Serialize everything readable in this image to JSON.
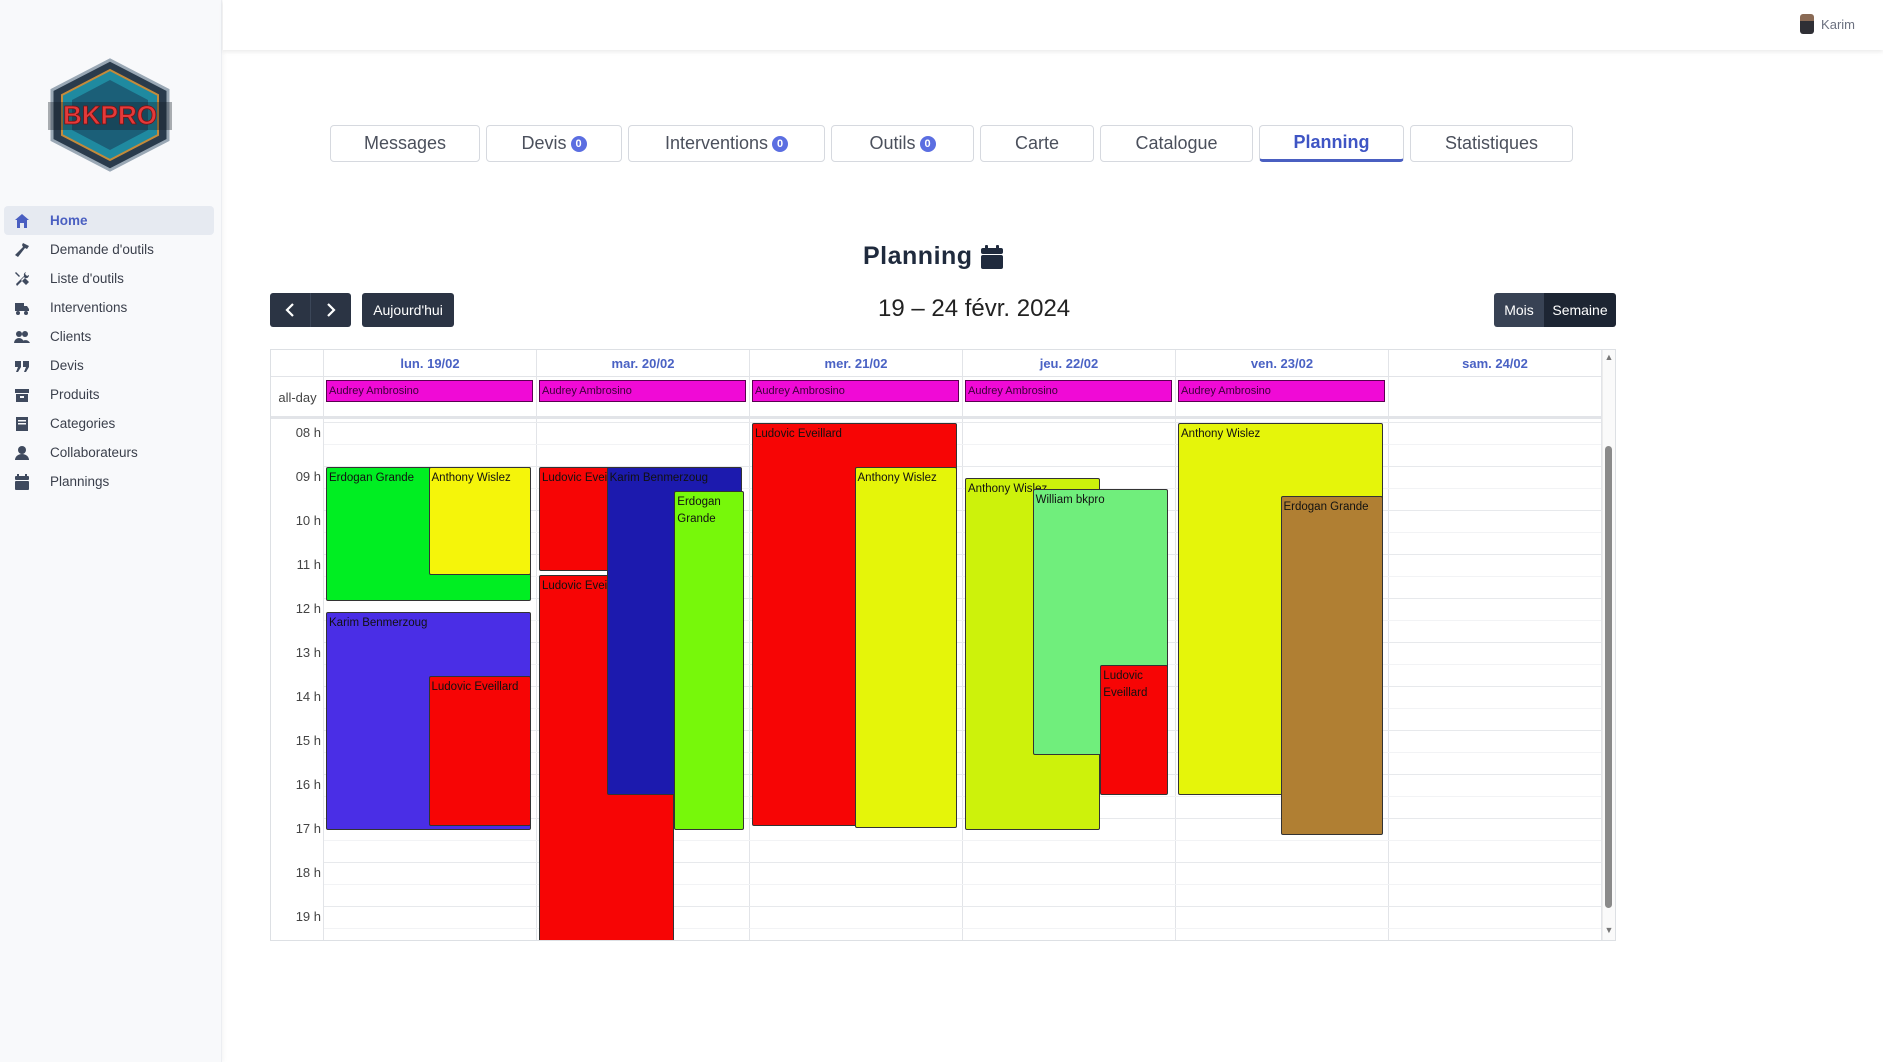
{
  "user": {
    "name": "Karim"
  },
  "brand": {
    "logo_text": "BKPRO"
  },
  "sidebar": {
    "items": [
      {
        "label": "Home",
        "icon": "home-icon",
        "active": true
      },
      {
        "label": "Demande d'outils",
        "icon": "hammer-icon",
        "active": false
      },
      {
        "label": "Liste d'outils",
        "icon": "tools-icon",
        "active": false
      },
      {
        "label": "Interventions",
        "icon": "truck-icon",
        "active": false
      },
      {
        "label": "Clients",
        "icon": "users-icon",
        "active": false
      },
      {
        "label": "Devis",
        "icon": "quote-icon",
        "active": false
      },
      {
        "label": "Produits",
        "icon": "box-icon",
        "active": false
      },
      {
        "label": "Categories",
        "icon": "book-icon",
        "active": false
      },
      {
        "label": "Collaborateurs",
        "icon": "user-icon",
        "active": false
      },
      {
        "label": "Plannings",
        "icon": "calendar-icon",
        "active": false
      }
    ]
  },
  "tabs": [
    {
      "label": "Messages",
      "badge": null
    },
    {
      "label": "Devis",
      "badge": "0"
    },
    {
      "label": "Interventions",
      "badge": "0"
    },
    {
      "label": "Outils",
      "badge": "0"
    },
    {
      "label": "Carte",
      "badge": null
    },
    {
      "label": "Catalogue",
      "badge": null
    },
    {
      "label": "Planning",
      "badge": null,
      "active": true
    },
    {
      "label": "Statistiques",
      "badge": null
    }
  ],
  "page": {
    "title": "Planning"
  },
  "toolbar": {
    "prev": "‹",
    "next": "›",
    "today": "Aujourd'hui",
    "range": "19 – 24 févr. 2024",
    "month": "Mois",
    "week": "Semaine"
  },
  "calendar": {
    "allday_label": "all-day",
    "days": [
      "lun. 19/02",
      "mar. 20/02",
      "mer. 21/02",
      "jeu. 22/02",
      "ven. 23/02",
      "sam. 24/02"
    ],
    "hours": [
      "08 h",
      "09 h",
      "10 h",
      "11 h",
      "12 h",
      "13 h",
      "14 h",
      "15 h",
      "16 h",
      "17 h",
      "18 h",
      "19 h"
    ],
    "allday_events": [
      {
        "day": 0,
        "title": "Audrey Ambrosino"
      },
      {
        "day": 1,
        "title": "Audrey Ambrosino"
      },
      {
        "day": 2,
        "title": "Audrey Ambrosino"
      },
      {
        "day": 3,
        "title": "Audrey Ambrosino"
      },
      {
        "day": 4,
        "title": "Audrey Ambrosino"
      }
    ],
    "events": [
      {
        "title": "Erdogan Grande",
        "day": 0,
        "start": 9.0,
        "end": 12.1,
        "color": "#00ee22"
      },
      {
        "title": "Anthony Wislez",
        "day": 0,
        "start": 9.0,
        "end": 11.5,
        "color": "#f5f50a"
      },
      {
        "title": "Karim Benmerzoug",
        "day": 0,
        "start": 12.3,
        "end": 17.3,
        "color": "#4a2ee6"
      },
      {
        "title": "Ludovic Eveillard",
        "day": 0,
        "start": 13.75,
        "end": 17.2,
        "color": "#f70505"
      },
      {
        "title": "Ludovic Eveillard",
        "day": 1,
        "start": 9.0,
        "end": 11.4,
        "color": "#f70505"
      },
      {
        "title": "Ludovic Eveillard",
        "day": 1,
        "start": 11.45,
        "end": 20.0,
        "color": "#f70505"
      },
      {
        "title": "Karim Benmerzoug",
        "day": 1,
        "start": 9.0,
        "end": 16.5,
        "color": "#1c1aae"
      },
      {
        "title": "Erdogan Grande",
        "day": 1,
        "start": 9.55,
        "end": 17.3,
        "color": "#77f80a"
      },
      {
        "title": "Ludovic Eveillard",
        "day": 2,
        "start": 8.0,
        "end": 17.2,
        "color": "#f70505"
      },
      {
        "title": "Anthony Wislez",
        "day": 2,
        "start": 9.0,
        "end": 17.25,
        "color": "#e5f509"
      },
      {
        "title": "Anthony Wislez",
        "day": 3,
        "start": 9.25,
        "end": 17.3,
        "color": "#cdf20b"
      },
      {
        "title": "William bkpro",
        "day": 3,
        "start": 9.5,
        "end": 15.6,
        "color": "#70ee7c"
      },
      {
        "title": "Ludovic Eveillard",
        "day": 3,
        "start": 13.5,
        "end": 16.5,
        "color": "#f70505"
      },
      {
        "title": "Anthony Wislez",
        "day": 4,
        "start": 8.0,
        "end": 16.5,
        "color": "#e5f50a"
      },
      {
        "title": "Erdogan Grande",
        "day": 4,
        "start": 9.65,
        "end": 17.4,
        "color": "#b07f33"
      }
    ]
  }
}
